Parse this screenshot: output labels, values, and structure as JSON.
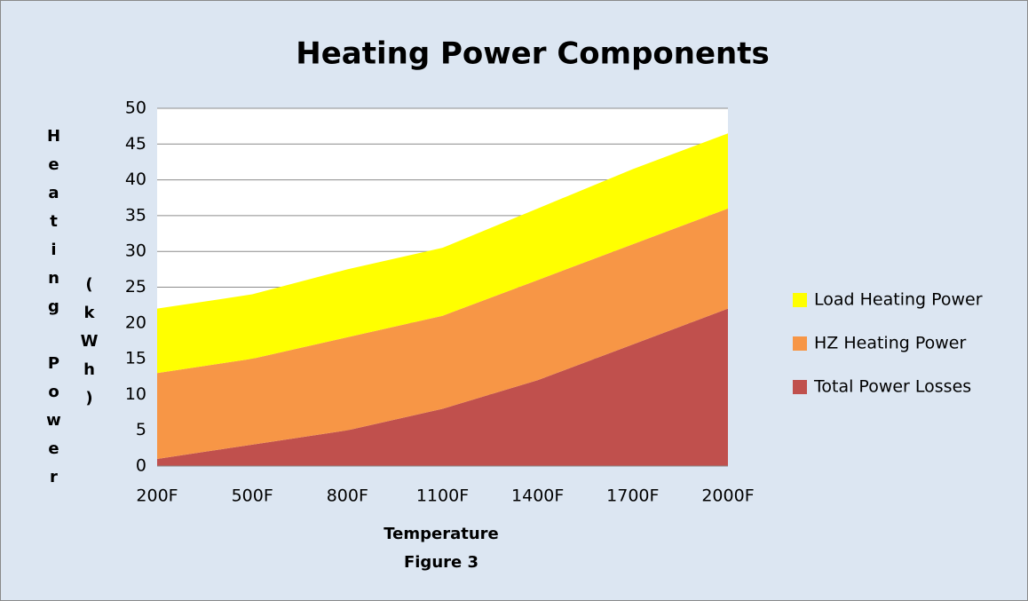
{
  "chart_data": {
    "type": "stacked_area",
    "title": "Heating Power Components",
    "x_label": "Temperature",
    "caption": "Figure 3",
    "y_label": "Heating Power",
    "y_unit": "(kWh)",
    "categories": [
      "200F",
      "500F",
      "800F",
      "1100F",
      "1400F",
      "1700F",
      "2000F"
    ],
    "series": [
      {
        "name": "Total Power Losses",
        "color": "#c0504d",
        "values": [
          1,
          3,
          5,
          8,
          12,
          17,
          22
        ]
      },
      {
        "name": "HZ Heating Power",
        "color": "#f79646",
        "values": [
          12,
          12,
          13,
          13,
          14,
          14,
          14
        ]
      },
      {
        "name": "Load Heating Power",
        "color": "#ffff00",
        "values": [
          9,
          9,
          9.5,
          9.5,
          10,
          10.5,
          10.5
        ]
      }
    ],
    "ylim": [
      0,
      50
    ],
    "yticks": [
      0,
      5,
      10,
      15,
      20,
      25,
      30,
      35,
      40,
      45,
      50
    ],
    "grid": true,
    "legend": "right"
  }
}
